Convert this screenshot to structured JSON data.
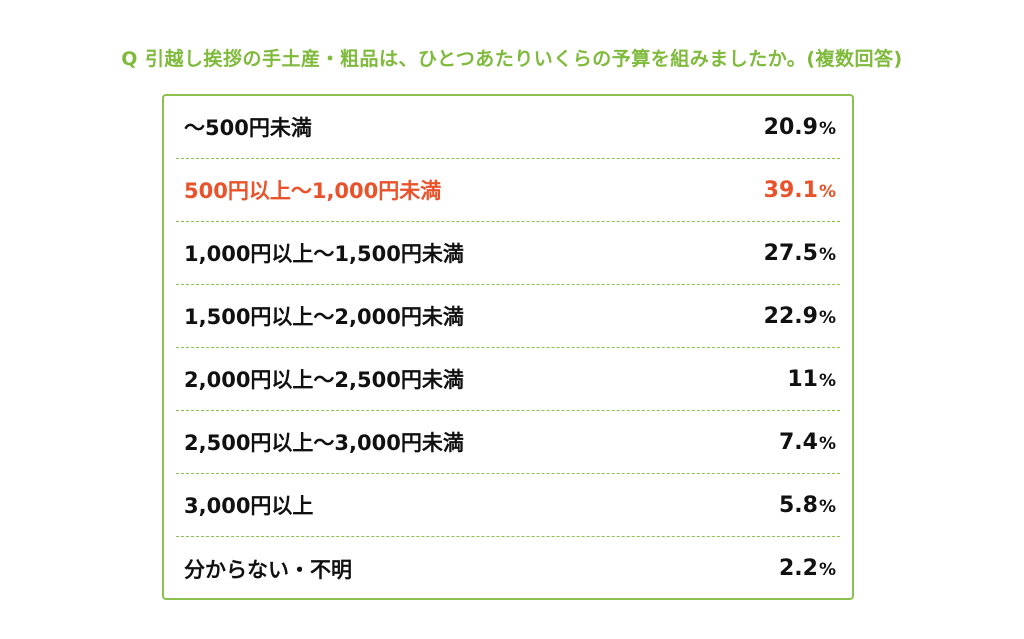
{
  "question": "Q 引越し挨拶の手土産・粗品は、ひとつあたりいくらの予算を組みましたか。(複数回答)",
  "colors": {
    "accent": "#7fba3c",
    "border": "#8cc152",
    "highlight": "#e8532b",
    "text": "#111111"
  },
  "unit": "%",
  "chart_data": {
    "type": "table",
    "title": "Q 引越し挨拶の手土産・粗品は、ひとつあたりいくらの予算を組みましたか。(複数回答)",
    "categories": [
      "〜500円未満",
      "500円以上〜1,000円未満",
      "1,000円以上〜1,500円未満",
      "1,500円以上〜2,000円未満",
      "2,000円以上〜2,500円未満",
      "2,500円以上〜3,000円未満",
      "3,000円以上",
      "分からない・不明"
    ],
    "values": [
      20.9,
      39.1,
      27.5,
      22.9,
      11,
      7.4,
      5.8,
      2.2
    ],
    "value_labels": [
      "20.9",
      "39.1",
      "27.5",
      "22.9",
      "11",
      "7.4",
      "5.8",
      "2.2"
    ],
    "unit": "%",
    "highlight_index": 1
  }
}
